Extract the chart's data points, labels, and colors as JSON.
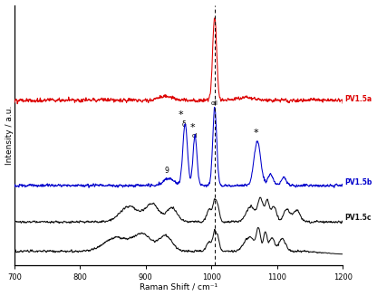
{
  "xlabel": "Raman Shift / cm⁻¹",
  "ylabel": "Intensity / a.u.",
  "label_a": "PV1.5a",
  "label_b": "PV1.5b",
  "label_c": "PV1.5c",
  "color_a": "#dd0000",
  "color_b": "#0000cc",
  "color_black": "#111111",
  "dashed_line_x": 1005,
  "star": "*",
  "background": "#ffffff",
  "xticks": [
    700,
    800,
    900,
    1000,
    1100,
    1200
  ],
  "xticklabels": [
    "700",
    "800",
    "900",
    "1000",
    "1100",
    "1200"
  ]
}
